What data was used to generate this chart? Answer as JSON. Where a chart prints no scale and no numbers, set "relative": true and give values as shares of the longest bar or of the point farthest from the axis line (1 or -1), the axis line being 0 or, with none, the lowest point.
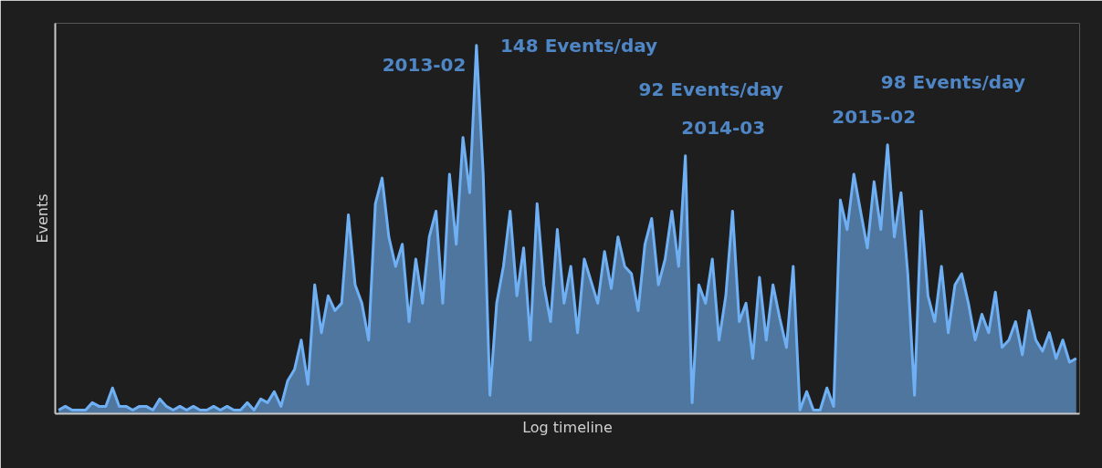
{
  "chart_data": {
    "type": "area",
    "relative": true,
    "xlabel": "Log timeline",
    "ylabel": "Events",
    "categories": [
      null,
      null,
      null,
      null,
      null,
      null,
      null,
      null,
      null,
      null,
      null,
      null,
      null,
      null,
      null,
      null,
      null,
      null,
      null,
      null,
      null,
      null,
      null,
      null,
      null,
      null,
      null,
      null,
      null,
      null,
      null,
      null,
      null,
      null,
      null,
      null,
      null,
      null,
      null,
      null,
      null,
      null,
      null,
      null,
      null,
      null,
      null,
      null,
      null,
      null,
      null,
      null,
      null,
      null,
      null,
      null,
      null,
      null,
      null,
      null,
      null,
      null,
      null,
      null,
      null,
      null,
      null,
      null,
      null,
      null,
      null,
      null,
      null,
      null,
      null,
      null,
      null,
      null,
      null,
      null,
      null,
      null,
      null,
      null,
      null,
      null,
      null,
      null,
      null,
      null,
      null,
      null,
      null,
      null,
      null,
      null,
      null,
      null,
      null,
      null,
      null,
      null,
      null,
      null,
      null,
      null,
      null,
      null,
      null,
      null,
      null,
      null,
      null,
      null,
      null,
      null,
      null,
      null,
      null,
      null,
      null,
      null,
      null,
      null,
      null,
      null,
      null,
      null,
      null,
      null,
      null,
      null,
      null,
      null,
      null,
      null,
      null,
      null,
      null,
      null,
      null,
      null,
      null,
      null,
      null,
      null,
      null,
      null,
      null,
      null,
      null,
      null
    ],
    "series": [
      {
        "color": "#6fb0f5",
        "values": [
          0.01,
          0.02,
          0.01,
          0.01,
          0.01,
          0.03,
          0.02,
          0.02,
          0.07,
          0.02,
          0.02,
          0.01,
          0.02,
          0.02,
          0.01,
          0.04,
          0.02,
          0.01,
          0.02,
          0.01,
          0.02,
          0.01,
          0.01,
          0.02,
          0.01,
          0.02,
          0.01,
          0.01,
          0.03,
          0.01,
          0.04,
          0.03,
          0.06,
          0.02,
          0.09,
          0.12,
          0.2,
          0.08,
          0.35,
          0.22,
          0.32,
          0.28,
          0.3,
          0.54,
          0.35,
          0.3,
          0.2,
          0.57,
          0.64,
          0.48,
          0.4,
          0.46,
          0.25,
          0.42,
          0.3,
          0.48,
          0.55,
          0.3,
          0.65,
          0.46,
          0.75,
          0.6,
          1.0,
          0.65,
          0.05,
          0.3,
          0.4,
          0.55,
          0.32,
          0.45,
          0.2,
          0.57,
          0.35,
          0.25,
          0.5,
          0.3,
          0.4,
          0.22,
          0.42,
          0.36,
          0.3,
          0.44,
          0.34,
          0.48,
          0.4,
          0.38,
          0.28,
          0.46,
          0.53,
          0.35,
          0.42,
          0.55,
          0.4,
          0.7,
          0.03,
          0.35,
          0.3,
          0.42,
          0.2,
          0.32,
          0.55,
          0.25,
          0.3,
          0.15,
          0.37,
          0.2,
          0.35,
          0.26,
          0.18,
          0.4,
          0.01,
          0.06,
          0.01,
          0.01,
          0.07,
          0.02,
          0.58,
          0.5,
          0.65,
          0.55,
          0.45,
          0.63,
          0.5,
          0.73,
          0.48,
          0.6,
          0.38,
          0.05,
          0.55,
          0.32,
          0.25,
          0.4,
          0.22,
          0.35,
          0.38,
          0.3,
          0.2,
          0.27,
          0.22,
          0.33,
          0.18,
          0.2,
          0.25,
          0.16,
          0.28,
          0.2,
          0.17,
          0.22,
          0.15,
          0.2,
          0.14,
          0.15
        ]
      }
    ],
    "annotations": [
      "2013-02",
      "148 Events/day",
      "92 Events/day",
      "2014-03",
      "2015-02",
      "98 Events/day"
    ]
  }
}
